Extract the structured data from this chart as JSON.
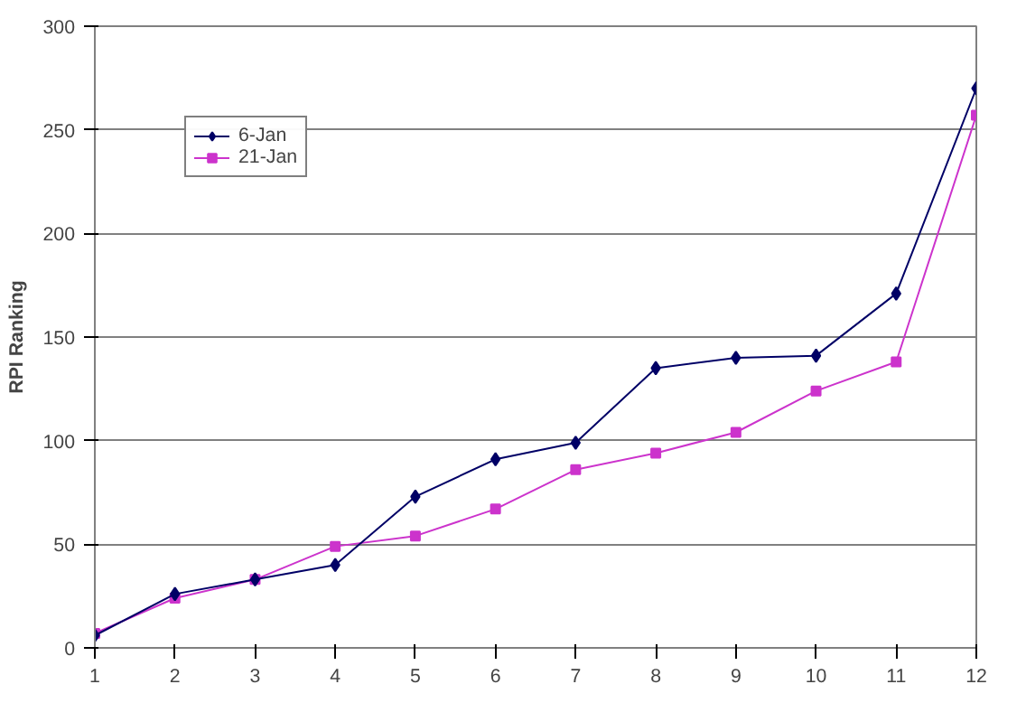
{
  "chart_data": {
    "type": "line",
    "ylabel": "RPI Ranking",
    "x": [
      1,
      2,
      3,
      4,
      5,
      6,
      7,
      8,
      9,
      10,
      11,
      12
    ],
    "series": [
      {
        "name": "6-Jan",
        "color": "#000066",
        "marker": "diamond",
        "values": [
          6,
          26,
          33,
          40,
          73,
          91,
          99,
          135,
          140,
          141,
          171,
          270
        ]
      },
      {
        "name": "21-Jan",
        "color": "#cc33cc",
        "marker": "square",
        "values": [
          7,
          24,
          33,
          49,
          54,
          67,
          86,
          94,
          104,
          124,
          138,
          257
        ]
      }
    ],
    "xlim": [
      1,
      12
    ],
    "xticks": [
      1,
      2,
      3,
      4,
      5,
      6,
      7,
      8,
      9,
      10,
      11,
      12
    ],
    "ylim": [
      0,
      300
    ],
    "yticks": [
      0,
      50,
      100,
      150,
      200,
      250,
      300
    ],
    "grid": "y",
    "legend": "top left",
    "line_style": "solid"
  }
}
